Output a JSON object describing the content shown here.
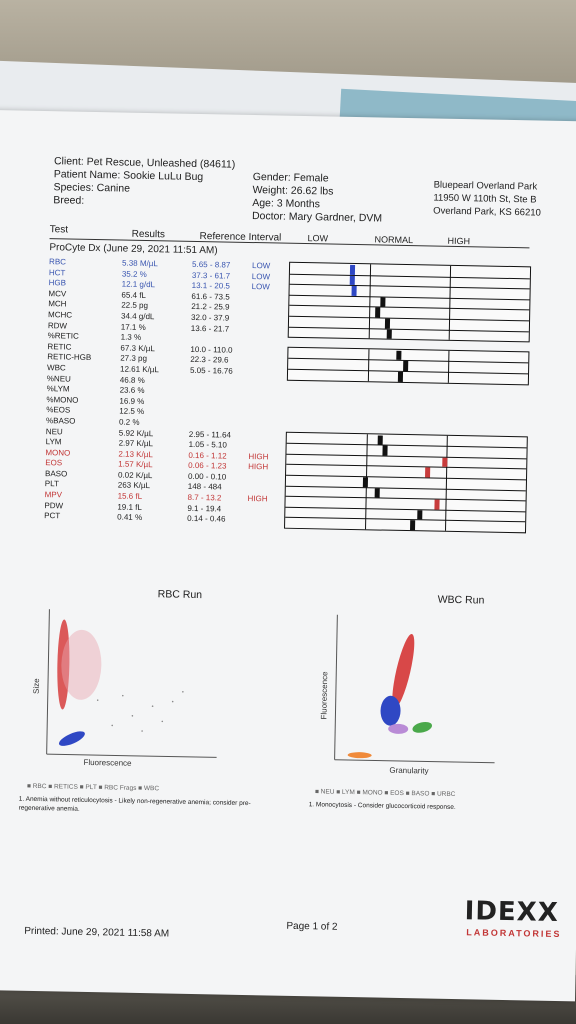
{
  "client": {
    "client_line": "Client: Pet Rescue, Unleashed (84611)",
    "patient_line": "Patient Name: Sookie LuLu Bug",
    "species_line": "Species: Canine",
    "breed_line": "Breed:"
  },
  "patient_info": {
    "gender": "Gender: Female",
    "weight": "Weight: 26.62 lbs",
    "age": "Age: 3 Months",
    "doctor": "Doctor: Mary Gardner, DVM"
  },
  "clinic": {
    "name": "Bluepearl Overland Park",
    "address1": "11950 W 110th St, Ste B",
    "address2": "Overland Park, KS 66210"
  },
  "columns": {
    "test": "Test",
    "results": "Results",
    "reference": "Reference Interval",
    "low": "LOW",
    "normal": "NORMAL",
    "high": "HIGH"
  },
  "run_title": "ProCyte Dx (June 29, 2021 11:51 AM)",
  "tests": [
    {
      "name": "RBC",
      "result": "5.38 M/µL",
      "ref": "5.65 - 8.87",
      "flag": "LOW",
      "status": "low"
    },
    {
      "name": "HCT",
      "result": "35.2 %",
      "ref": "37.3 - 61.7",
      "flag": "LOW",
      "status": "low"
    },
    {
      "name": "HGB",
      "result": "12.1 g/dL",
      "ref": "13.1 - 20.5",
      "flag": "LOW",
      "status": "low"
    },
    {
      "name": "MCV",
      "result": "65.4 fL",
      "ref": "61.6 - 73.5",
      "flag": "",
      "status": "normal"
    },
    {
      "name": "MCH",
      "result": "22.5 pg",
      "ref": "21.2 - 25.9",
      "flag": "",
      "status": "normal"
    },
    {
      "name": "MCHC",
      "result": "34.4 g/dL",
      "ref": "32.0 - 37.9",
      "flag": "",
      "status": "normal"
    },
    {
      "name": "RDW",
      "result": "17.1 %",
      "ref": "13.6 - 21.7",
      "flag": "",
      "status": "normal"
    },
    {
      "name": "%RETIC",
      "result": "1.3 %",
      "ref": "",
      "flag": "",
      "status": "normal"
    },
    {
      "name": "RETIC",
      "result": "67.3 K/µL",
      "ref": "10.0 - 110.0",
      "flag": "",
      "status": "normal"
    },
    {
      "name": "RETIC-HGB",
      "result": "27.3 pg",
      "ref": "22.3 - 29.6",
      "flag": "",
      "status": "normal"
    },
    {
      "name": "WBC",
      "result": "12.61 K/µL",
      "ref": "5.05 - 16.76",
      "flag": "",
      "status": "normal"
    },
    {
      "name": "%NEU",
      "result": "46.8 %",
      "ref": "",
      "flag": "",
      "status": "normal"
    },
    {
      "name": "%LYM",
      "result": "23.6 %",
      "ref": "",
      "flag": "",
      "status": "normal"
    },
    {
      "name": "%MONO",
      "result": "16.9 %",
      "ref": "",
      "flag": "",
      "status": "normal"
    },
    {
      "name": "%EOS",
      "result": "12.5 %",
      "ref": "",
      "flag": "",
      "status": "normal"
    },
    {
      "name": "%BASO",
      "result": "0.2 %",
      "ref": "",
      "flag": "",
      "status": "normal"
    },
    {
      "name": "NEU",
      "result": "5.92 K/µL",
      "ref": "2.95 - 11.64",
      "flag": "",
      "status": "normal"
    },
    {
      "name": "LYM",
      "result": "2.97 K/µL",
      "ref": "1.05 - 5.10",
      "flag": "",
      "status": "normal"
    },
    {
      "name": "MONO",
      "result": "2.13 K/µL",
      "ref": "0.16 - 1.12",
      "flag": "HIGH",
      "status": "high"
    },
    {
      "name": "EOS",
      "result": "1.57 K/µL",
      "ref": "0.06 - 1.23",
      "flag": "HIGH",
      "status": "high"
    },
    {
      "name": "BASO",
      "result": "0.02 K/µL",
      "ref": "0.00 - 0.10",
      "flag": "",
      "status": "normal"
    },
    {
      "name": "PLT",
      "result": "263 K/µL",
      "ref": "148 - 484",
      "flag": "",
      "status": "normal"
    },
    {
      "name": "MPV",
      "result": "15.6 fL",
      "ref": "8.7 - 13.2",
      "flag": "HIGH",
      "status": "high"
    },
    {
      "name": "PDW",
      "result": "19.1 fL",
      "ref": "9.1 - 19.4",
      "flag": "",
      "status": "normal"
    },
    {
      "name": "PCT",
      "result": "0.41 %",
      "ref": "0.14 - 0.46",
      "flag": "",
      "status": "normal"
    }
  ],
  "colors": {
    "low": "#2f48c4",
    "high": "#c83c3c",
    "normal": "#111111",
    "low_text": "#3a56b0",
    "high_text": "#c23636"
  },
  "rbc_run": {
    "title": "RBC Run",
    "x_label": "Fluorescence",
    "y_label": "Size",
    "legend": "■ RBC  ■ RETICS  ■ PLT  ■ RBC Frags  ■ WBC",
    "note": "1. Anemia without reticulocytosis - Likely non-regenerative anemia; consider pre-regenerative anemia."
  },
  "wbc_run": {
    "title": "WBC Run",
    "x_label": "Granularity",
    "y_label": "Fluorescence",
    "legend": "■ NEU  ■ LYM  ■ MONO  ■ EOS  ■ BASO  ■ URBC",
    "note": "1. Monocytosis - Consider glucocorticoid response."
  },
  "footer": {
    "printed": "Printed: June 29, 2021 11:58 AM",
    "page": "Page 1 of 2",
    "logo": "IDEXX",
    "logo_sub": "LABORATORIES"
  }
}
